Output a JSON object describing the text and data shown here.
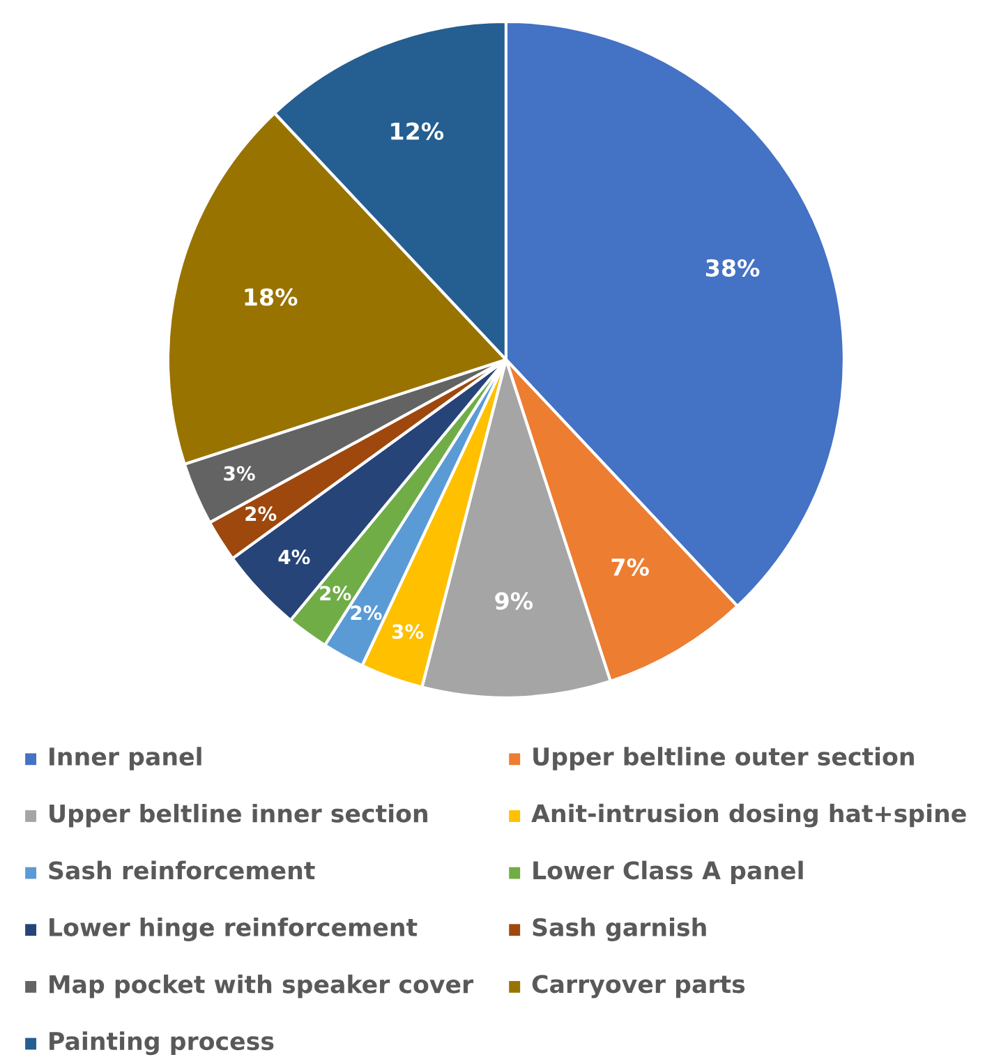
{
  "chart_data": {
    "type": "pie",
    "categories": [
      "Inner panel",
      "Upper beltline outer section",
      "Upper beltline inner section",
      "Anit-intrusion dosing hat+spine",
      "Sash reinforcement",
      "Lower Class A panel",
      "Lower hinge reinforcement",
      "Sash garnish",
      "Map pocket with speaker cover",
      "Carryover parts",
      "Painting process"
    ],
    "values": [
      38,
      7,
      9,
      3,
      2,
      2,
      4,
      2,
      3,
      18,
      12
    ],
    "colors": [
      "#4472c4",
      "#ed7d31",
      "#a5a5a5",
      "#ffc000",
      "#5b9bd5",
      "#70ad47",
      "#264478",
      "#9e480e",
      "#636363",
      "#997300",
      "#255e91"
    ],
    "value_labels": [
      "38%",
      "7%",
      "9%",
      "3%",
      "2%",
      "2%",
      "4%",
      "2%",
      "3%",
      "18%",
      "12%"
    ],
    "legend": "bottom"
  }
}
